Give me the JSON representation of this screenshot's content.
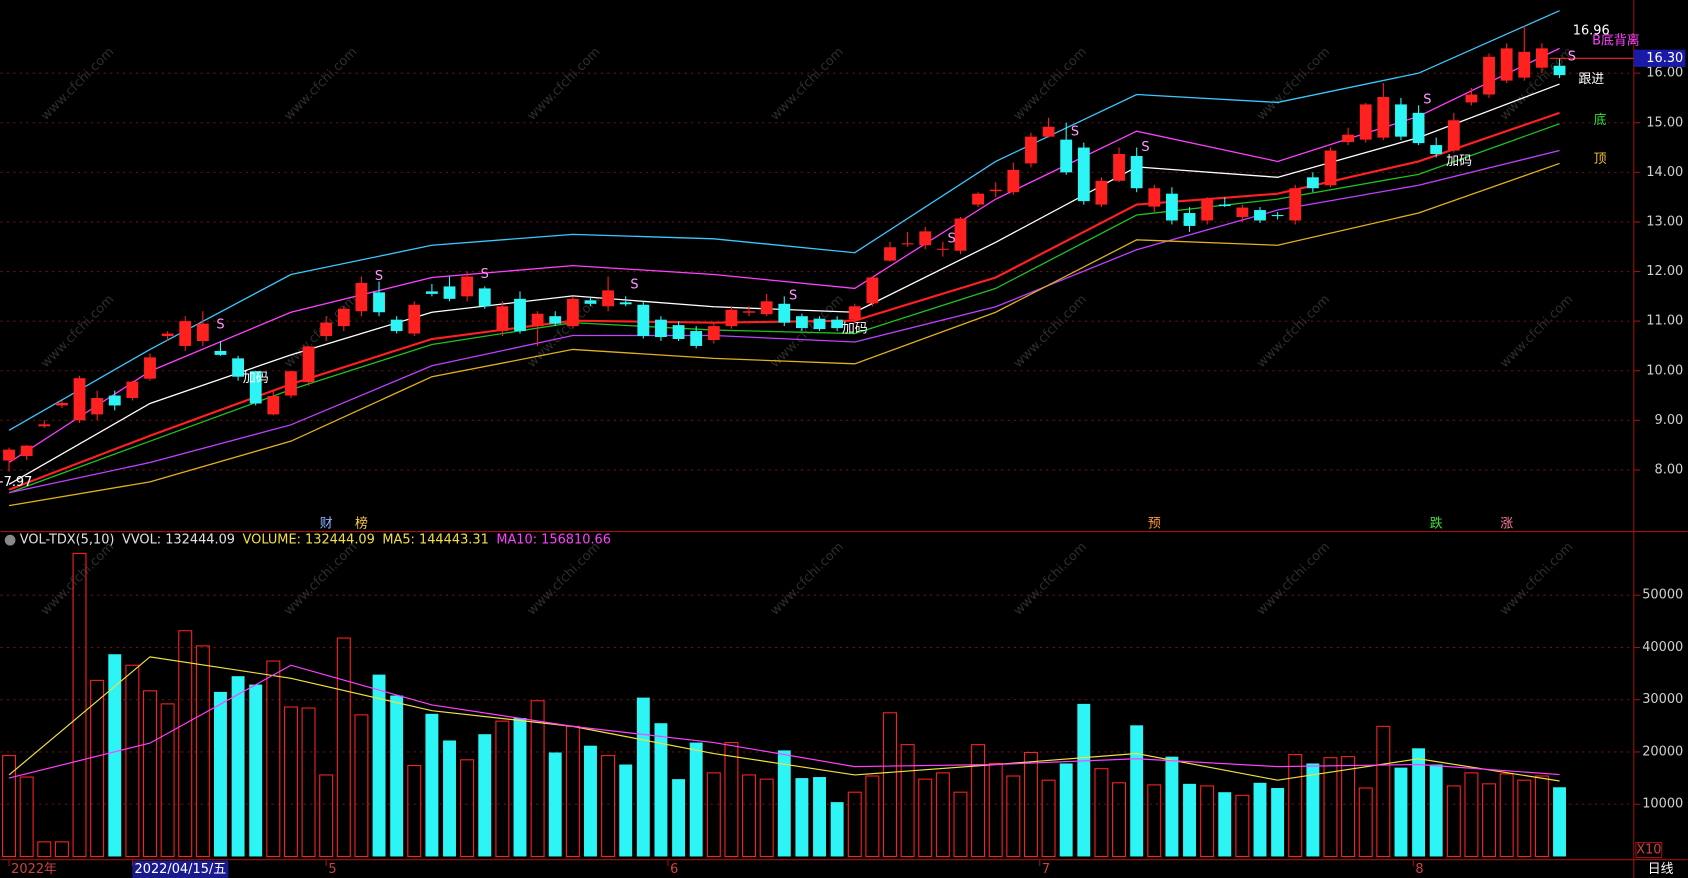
{
  "chart_data": [
    {
      "type": "candlestick",
      "ylim": [
        6.78,
        17.475
      ],
      "yticks": [
        {
          "value": 8,
          "label": "8.00"
        },
        {
          "value": 9,
          "label": "9.00"
        },
        {
          "value": 10,
          "label": "10.00"
        },
        {
          "value": 11,
          "label": "11.00"
        },
        {
          "value": 12,
          "label": "12.00"
        },
        {
          "value": 13,
          "label": "13.00"
        },
        {
          "value": 14,
          "label": "14.00"
        },
        {
          "value": 15,
          "label": "15.00"
        },
        {
          "value": 16,
          "label": "16.00"
        }
      ],
      "grid": true,
      "up_color": "#ff2020",
      "down_color": "#2ef5f5",
      "open": [
        8.19,
        8.28,
        8.88,
        9.3,
        9.0,
        9.12,
        9.5,
        9.45,
        9.84,
        10.7,
        10.5,
        10.6,
        10.4,
        10.25,
        9.99,
        9.12,
        9.5,
        9.77,
        10.7,
        10.9,
        11.2,
        11.58,
        11.03,
        10.75,
        11.6,
        11.7,
        11.5,
        11.66,
        10.8,
        11.45,
        10.9,
        11.1,
        10.9,
        11.42,
        11.3,
        11.38,
        11.33,
        11.03,
        10.92,
        10.8,
        10.62,
        10.9,
        11.17,
        11.14,
        11.35,
        11.1,
        11.05,
        11.03,
        11.03,
        11.36,
        12.22,
        12.55,
        12.53,
        12.44,
        12.42,
        13.35,
        13.62,
        13.6,
        14.18,
        14.72,
        14.66,
        14.5,
        13.35,
        13.83,
        14.33,
        13.31,
        13.57,
        13.18,
        13.03,
        13.35,
        13.1,
        13.24,
        13.14,
        13.03,
        13.9,
        13.74,
        14.61,
        14.66,
        14.7,
        15.37,
        15.2,
        14.55,
        14.44,
        15.41,
        15.57,
        15.85,
        15.91,
        16.11,
        16.15
      ],
      "high": [
        8.45,
        8.5,
        9.0,
        9.4,
        9.9,
        9.6,
        9.6,
        9.8,
        10.35,
        10.8,
        11.1,
        11.2,
        10.6,
        10.3,
        10.0,
        9.6,
        10.0,
        10.5,
        11.1,
        11.3,
        11.9,
        11.8,
        11.1,
        11.4,
        11.75,
        11.9,
        12.0,
        11.7,
        11.4,
        11.6,
        11.2,
        11.2,
        11.5,
        11.5,
        11.9,
        11.5,
        11.4,
        11.1,
        11.0,
        10.9,
        10.95,
        11.3,
        11.3,
        11.55,
        11.5,
        11.15,
        11.1,
        11.1,
        11.35,
        11.9,
        12.6,
        12.8,
        12.9,
        12.6,
        13.1,
        13.6,
        13.8,
        14.2,
        14.8,
        15.1,
        15.0,
        14.6,
        13.9,
        14.5,
        14.5,
        13.75,
        13.7,
        13.3,
        13.5,
        13.5,
        13.35,
        13.3,
        13.2,
        13.75,
        14.0,
        14.5,
        14.9,
        15.4,
        15.8,
        15.5,
        15.35,
        14.7,
        15.2,
        15.7,
        16.4,
        16.6,
        16.96,
        16.6,
        16.3
      ],
      "low": [
        7.97,
        8.2,
        8.85,
        9.25,
        8.95,
        9.0,
        9.2,
        9.4,
        9.8,
        10.6,
        10.4,
        10.5,
        10.3,
        9.8,
        9.3,
        9.1,
        9.45,
        9.7,
        10.6,
        10.8,
        11.1,
        11.1,
        10.75,
        10.7,
        11.5,
        11.4,
        11.4,
        11.25,
        10.7,
        10.75,
        10.5,
        10.9,
        10.85,
        11.3,
        11.2,
        11.3,
        10.65,
        10.6,
        10.6,
        10.45,
        10.55,
        10.85,
        11.1,
        11.1,
        10.9,
        10.8,
        10.8,
        10.8,
        10.95,
        11.3,
        12.2,
        12.5,
        12.45,
        12.3,
        12.35,
        13.3,
        13.5,
        13.55,
        14.1,
        14.7,
        13.95,
        13.35,
        13.3,
        13.8,
        13.6,
        13.2,
        12.95,
        12.8,
        12.95,
        13.3,
        13.0,
        12.98,
        13.05,
        12.95,
        13.6,
        13.7,
        14.55,
        14.6,
        14.65,
        14.65,
        14.55,
        14.3,
        14.4,
        15.35,
        15.5,
        15.8,
        15.85,
        16.0,
        15.9
      ],
      "close": [
        8.41,
        8.49,
        8.92,
        9.35,
        9.85,
        9.45,
        9.3,
        9.78,
        10.27,
        10.75,
        11.0,
        10.95,
        10.32,
        9.88,
        9.34,
        9.49,
        9.99,
        10.49,
        10.97,
        11.25,
        11.77,
        11.18,
        10.8,
        11.33,
        11.55,
        11.45,
        11.9,
        11.3,
        11.3,
        10.8,
        11.15,
        10.95,
        11.45,
        11.35,
        11.62,
        11.34,
        10.7,
        10.68,
        10.64,
        10.5,
        10.9,
        11.23,
        11.2,
        11.4,
        10.97,
        10.86,
        10.84,
        10.86,
        11.3,
        11.88,
        12.49,
        12.57,
        12.81,
        12.46,
        13.07,
        13.57,
        13.65,
        14.05,
        14.72,
        14.92,
        14.0,
        13.42,
        13.83,
        14.37,
        13.68,
        13.68,
        13.03,
        12.92,
        13.46,
        13.32,
        13.29,
        13.03,
        13.12,
        13.68,
        13.68,
        14.44,
        14.76,
        15.37,
        15.52,
        14.72,
        14.59,
        14.37,
        15.05,
        15.57,
        16.33,
        16.5,
        16.43,
        16.5,
        15.96
      ],
      "lines": [
        {
          "color": "#3cc8ff",
          "x": [
            0,
            8,
            16,
            24,
            32,
            40,
            48,
            56,
            64,
            72,
            80,
            88
          ],
          "values": [
            8.8,
            10.43,
            11.94,
            12.53,
            12.75,
            12.66,
            12.38,
            14.22,
            15.57,
            15.41,
            16.0,
            17.26
          ]
        },
        {
          "color": "#ff40ff",
          "x": [
            0,
            8,
            16,
            24,
            32,
            40,
            48,
            56,
            64,
            72,
            80,
            88
          ],
          "values": [
            8.15,
            9.99,
            11.18,
            11.88,
            12.12,
            11.94,
            11.66,
            13.46,
            14.83,
            14.22,
            15.13,
            16.5
          ]
        },
        {
          "color": "#ffffff",
          "x": [
            0,
            8,
            16,
            24,
            32,
            40,
            48,
            56,
            64,
            72,
            80,
            88
          ],
          "values": [
            7.71,
            9.34,
            10.32,
            11.18,
            11.51,
            11.29,
            11.18,
            12.59,
            14.11,
            13.9,
            14.7,
            15.78
          ]
        },
        {
          "color": "#20c020",
          "x": [
            0,
            8,
            16,
            24,
            32,
            40,
            48,
            56,
            64,
            72,
            80,
            88
          ],
          "values": [
            7.54,
            8.58,
            9.62,
            10.53,
            10.97,
            10.82,
            10.75,
            11.66,
            13.14,
            13.46,
            13.96,
            14.98
          ]
        },
        {
          "color": "#ff2020",
          "x": [
            0,
            8,
            16,
            24,
            32,
            40,
            48,
            56,
            64,
            72,
            80,
            88
          ],
          "values": [
            7.6,
            8.69,
            9.73,
            10.64,
            11.01,
            10.97,
            11.01,
            11.88,
            13.35,
            13.57,
            14.22,
            15.2
          ]
        },
        {
          "color": "#c040ff",
          "x": [
            0,
            8,
            16,
            24,
            32,
            40,
            48,
            56,
            64,
            72,
            80,
            88
          ],
          "values": [
            7.54,
            8.15,
            8.91,
            10.1,
            10.71,
            10.71,
            10.58,
            11.29,
            12.44,
            13.24,
            13.74,
            14.44
          ]
        },
        {
          "color": "#e0b020",
          "x": [
            0,
            8,
            16,
            24,
            32,
            40,
            48,
            56,
            64,
            72,
            80,
            88
          ],
          "values": [
            7.28,
            7.76,
            8.58,
            9.88,
            10.43,
            10.25,
            10.14,
            11.18,
            12.64,
            12.53,
            13.18,
            14.18
          ]
        }
      ],
      "last_price": {
        "value": 16.3,
        "label": "16.30"
      },
      "annotations": [
        {
          "text": "S",
          "x": 12,
          "y": 10.92,
          "color": "#ff9cff"
        },
        {
          "text": "S",
          "x": 21,
          "y": 11.9,
          "color": "#ff9cff"
        },
        {
          "text": "S",
          "x": 27,
          "y": 11.94,
          "color": "#ff9cff"
        },
        {
          "text": "S",
          "x": 35.5,
          "y": 11.73,
          "color": "#ff9cff"
        },
        {
          "text": "S",
          "x": 44.5,
          "y": 11.51,
          "color": "#ff9cff"
        },
        {
          "text": "S",
          "x": 53.5,
          "y": 12.66,
          "color": "#ff9cff"
        },
        {
          "text": "S",
          "x": 60.5,
          "y": 14.81,
          "color": "#ff9cff"
        },
        {
          "text": "S",
          "x": 64.5,
          "y": 14.5,
          "color": "#ff9cff"
        },
        {
          "text": "S",
          "x": 80.5,
          "y": 15.46,
          "color": "#ff9cff"
        },
        {
          "text": "S",
          "x": 88.7,
          "y": 16.33,
          "color": "#ff9cff"
        },
        {
          "text": "加码",
          "x": 14,
          "y": 9.84,
          "color": "#ffffff"
        },
        {
          "text": "加码",
          "x": 48,
          "y": 10.84,
          "color": "#ffffff"
        },
        {
          "text": "加码",
          "x": 82.3,
          "y": 14.22,
          "color": "#ffffff"
        },
        {
          "text": "跟进",
          "x": 89.8,
          "y": 15.87,
          "color": "#ffffff"
        },
        {
          "text": "底",
          "x": 90.3,
          "y": 15.05,
          "color": "#30e030"
        },
        {
          "text": "顶",
          "x": 90.3,
          "y": 14.26,
          "color": "#f0c030"
        },
        {
          "text": "B底背离",
          "x": 91.2,
          "y": 16.65,
          "color": "#ff40ff"
        },
        {
          "text": "16.96",
          "x": 89.8,
          "y": 16.85,
          "color": "#ffffff"
        },
        {
          "text": "←7.97",
          "x": 0.2,
          "y": 7.75,
          "color": "#ffffff"
        }
      ],
      "events": [
        {
          "text": "财",
          "x": 18,
          "color": "#8fb4ff"
        },
        {
          "text": "榜",
          "x": 20,
          "color": "#ffd24a"
        },
        {
          "text": "预",
          "x": 65,
          "color": "#ff9a3c"
        },
        {
          "text": "跌",
          "x": 81,
          "color": "#40e040"
        },
        {
          "text": "涨",
          "x": 85,
          "color": "#ff7aa0"
        }
      ],
      "x_labels": [
        {
          "x": 0,
          "label": "2022年"
        },
        {
          "x": 7,
          "label": "2022/04/15/五"
        },
        {
          "x": 18,
          "label": "5"
        },
        {
          "x": 37.4,
          "label": "6"
        },
        {
          "x": 58.5,
          "label": "7"
        },
        {
          "x": 79.7,
          "label": "8"
        }
      ],
      "period": "日线",
      "watermark": "www.cfchi.com"
    },
    {
      "type": "bar",
      "ylim": [
        0,
        61770
      ],
      "yticks": [
        10000,
        20000,
        30000,
        40000,
        50000
      ],
      "grid": true,
      "unit": "X10",
      "legend": [
        {
          "text": "VOL-TDX(5,10)",
          "color": "#e0e0e0"
        },
        {
          "text": "VVOL: 132444.09",
          "color": "#e0e0e0"
        },
        {
          "text": "VOLUME: 132444.09",
          "color": "#f0e040"
        },
        {
          "text": "MA5: 144443.31",
          "color": "#f0e040"
        },
        {
          "text": "MA10: 156810.66",
          "color": "#ff40ff"
        }
      ],
      "values": [
        19300,
        15200,
        2800,
        2800,
        58000,
        33700,
        38700,
        36600,
        31700,
        29200,
        43200,
        40300,
        31500,
        34500,
        32900,
        37400,
        28600,
        28400,
        15600,
        41800,
        27100,
        34800,
        30800,
        17400,
        27300,
        22200,
        18500,
        23400,
        25900,
        26500,
        29800,
        19900,
        24900,
        21200,
        19300,
        17600,
        30400,
        25500,
        14800,
        21800,
        16000,
        21800,
        15600,
        14800,
        20300,
        15000,
        15200,
        10400,
        12300,
        15400,
        27500,
        21400,
        14800,
        16000,
        12300,
        21400,
        17800,
        15400,
        19900,
        14600,
        17800,
        29200,
        16800,
        14100,
        25100,
        13700,
        19100,
        13900,
        13500,
        12300,
        11700,
        14100,
        13100,
        19500,
        17800,
        18900,
        19100,
        13100,
        24900,
        17000,
        20700,
        17600,
        13500,
        16000,
        13900,
        15800,
        14600,
        15400,
        13244.41
      ],
      "lines": [
        {
          "color": "#f0e040",
          "x": [
            0,
            8,
            16,
            24,
            32,
            40,
            48,
            56,
            64,
            72,
            80,
            88
          ],
          "values": [
            15600,
            38200,
            34100,
            27900,
            24900,
            19700,
            15600,
            17600,
            19700,
            14600,
            18700,
            14444.33
          ]
        },
        {
          "color": "#ff40ff",
          "x": [
            0,
            8,
            16,
            24,
            32,
            40,
            48,
            56,
            64,
            72,
            80,
            88
          ],
          "values": [
            15000,
            21700,
            36600,
            29000,
            24900,
            21800,
            17200,
            17600,
            18700,
            17200,
            17600,
            15681.07
          ]
        }
      ]
    }
  ]
}
